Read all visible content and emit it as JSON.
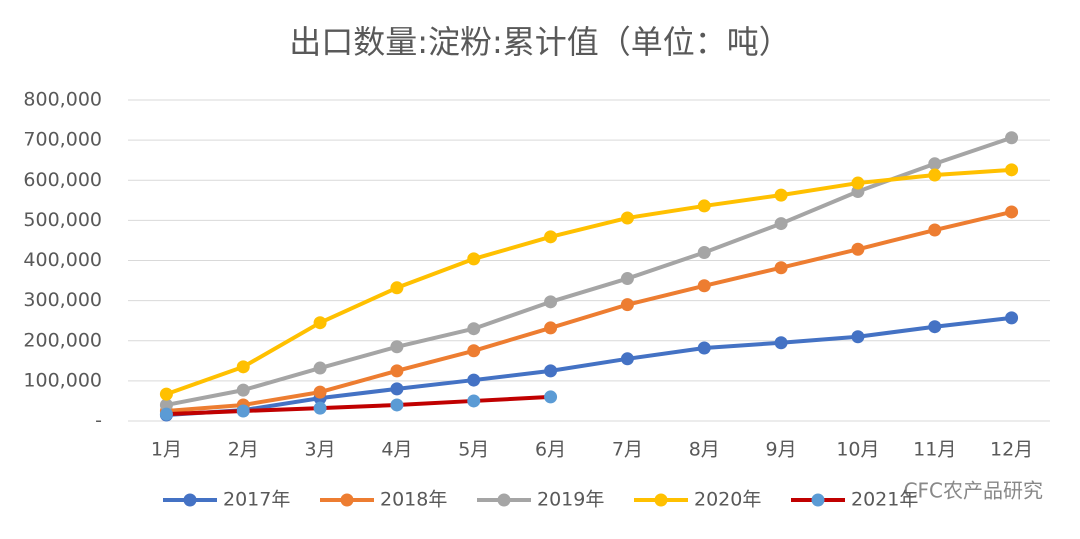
{
  "chart_data": {
    "type": "line",
    "title": "出口数量:淀粉:累计值（单位：吨）",
    "categories": [
      "1月",
      "2月",
      "3月",
      "4月",
      "5月",
      "6月",
      "7月",
      "8月",
      "9月",
      "10月",
      "11月",
      "12月"
    ],
    "series": [
      {
        "name": "2017年",
        "color": "#4472c4",
        "values": [
          15000,
          27000,
          57000,
          80000,
          102000,
          125000,
          155000,
          182000,
          195000,
          210000,
          235000,
          257000
        ]
      },
      {
        "name": "2018年",
        "color": "#ed7d31",
        "values": [
          25000,
          40000,
          72000,
          125000,
          175000,
          232000,
          290000,
          337000,
          382000,
          428000,
          476000,
          521000
        ]
      },
      {
        "name": "2019年",
        "color": "#a5a5a5",
        "values": [
          40000,
          77000,
          132000,
          185000,
          230000,
          297000,
          355000,
          420000,
          492000,
          572000,
          641000,
          706000
        ]
      },
      {
        "name": "2020年",
        "color": "#ffc000",
        "values": [
          67000,
          135000,
          245000,
          332000,
          404000,
          459000,
          506000,
          536000,
          563000,
          593000,
          613000,
          626000
        ]
      },
      {
        "name": "2021年",
        "color": "#c00000",
        "marker_color": "#5b9bd5",
        "values": [
          17000,
          25000,
          32000,
          40000,
          50000,
          60000,
          null,
          null,
          null,
          null,
          null,
          null
        ]
      }
    ],
    "ylim": [
      0,
      800000
    ],
    "yticks": [
      {
        "value": 0,
        "label": "-"
      },
      {
        "value": 100000,
        "label": "100,000"
      },
      {
        "value": 200000,
        "label": "200,000"
      },
      {
        "value": 300000,
        "label": "300,000"
      },
      {
        "value": 400000,
        "label": "400,000"
      },
      {
        "value": 500000,
        "label": "500,000"
      },
      {
        "value": 600000,
        "label": "600,000"
      },
      {
        "value": 700000,
        "label": "700,000"
      },
      {
        "value": 800000,
        "label": "800,000"
      }
    ],
    "grid": true,
    "legend": "bottom",
    "watermark": "CFC农产品研究"
  }
}
